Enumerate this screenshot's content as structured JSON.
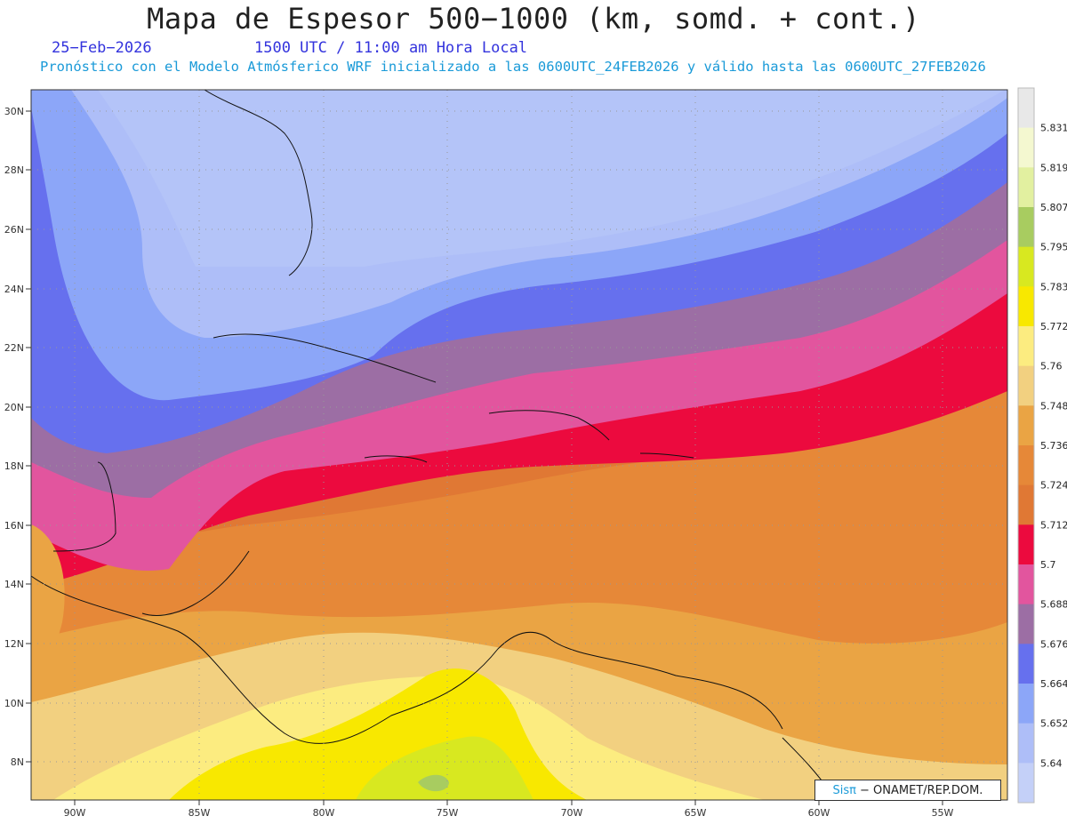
{
  "header": {
    "title": "Mapa de Espesor 500−1000 (km, somd. + cont.)",
    "date": "25−Feb−2026",
    "time": "1500 UTC / 11:00 am Hora Local",
    "subtitle": "Pronóstico con el Modelo Atmósferico WRF inicializado a las 0600UTC_24FEB2026 y válido hasta las  0600UTC_27FEB2026"
  },
  "map": {
    "lat_labels": [
      "30N",
      "28N",
      "26N",
      "24N",
      "22N",
      "20N",
      "18N",
      "16N",
      "14N",
      "12N",
      "10N",
      "8N"
    ],
    "lon_labels": [
      "90W",
      "85W",
      "80W",
      "75W",
      "70W",
      "65W",
      "60W",
      "55W"
    ]
  },
  "legend": {
    "labels": [
      "5.831",
      "5.819",
      "5.807",
      "5.795",
      "5.783",
      "5.772",
      "5.76",
      "5.748",
      "5.736",
      "5.724",
      "5.712",
      "5.7",
      "5.688",
      "5.676",
      "5.664",
      "5.652",
      "5.64"
    ],
    "colors": [
      "#e8e8e8",
      "#f4f8d0",
      "#e2f0a0",
      "#a8cc60",
      "#d8e820",
      "#f8e800",
      "#fcec80",
      "#f2d080",
      "#eaa444",
      "#e68838",
      "#e07834",
      "#ec0a3e",
      "#e2559e",
      "#9c6ea4",
      "#6670ee",
      "#8ca6f8",
      "#aebef8",
      "#c4d0f8"
    ]
  },
  "credit": {
    "brand": "Sisπ",
    "text": "− ONAMET/REP.DOM."
  }
}
